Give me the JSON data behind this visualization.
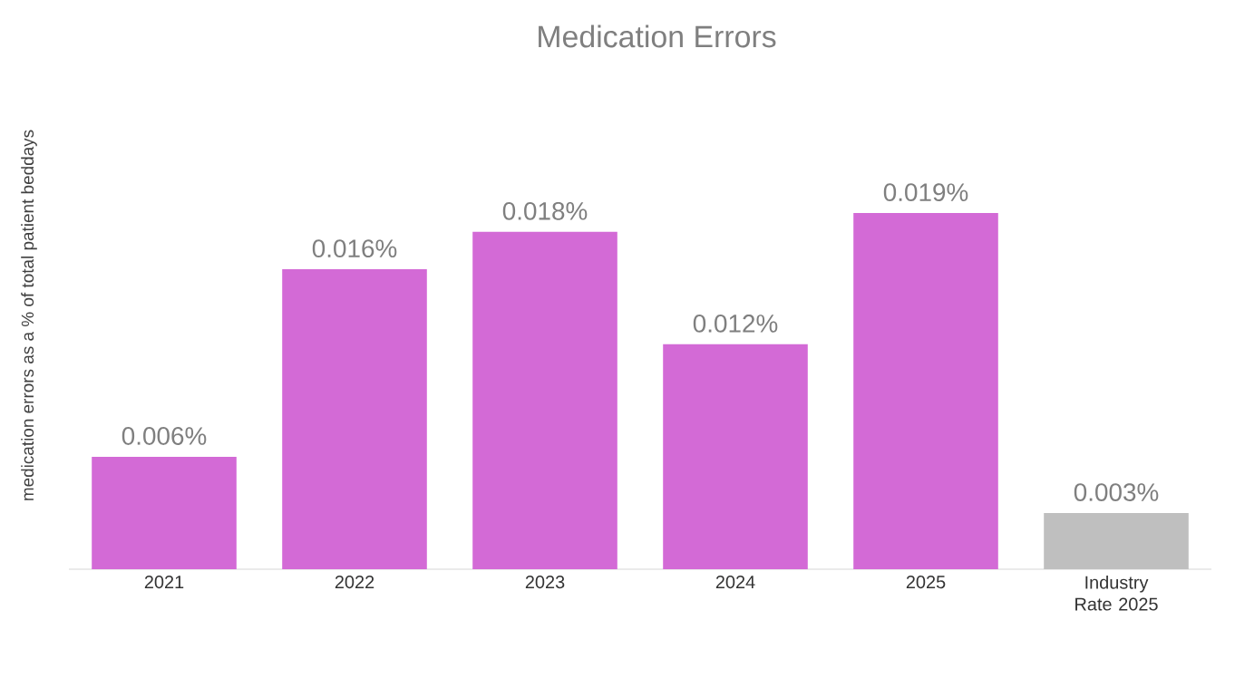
{
  "chart_data": {
    "type": "bar",
    "title": "Medication Errors",
    "ylabel": "medication errors as a % of total patient beddays",
    "categories": [
      "2021",
      "2022",
      "2023",
      "2024",
      "2025",
      "Industry Rate 2025"
    ],
    "values": [
      0.006,
      0.016,
      0.018,
      0.012,
      0.019,
      0.003
    ],
    "value_labels": [
      "0.006%",
      "0.016%",
      "0.018%",
      "0.012%",
      "0.019%",
      "0.003%"
    ],
    "colors": [
      "#d36ad6",
      "#d36ad6",
      "#d36ad6",
      "#d36ad6",
      "#d36ad6",
      "#bfbfbf"
    ]
  }
}
